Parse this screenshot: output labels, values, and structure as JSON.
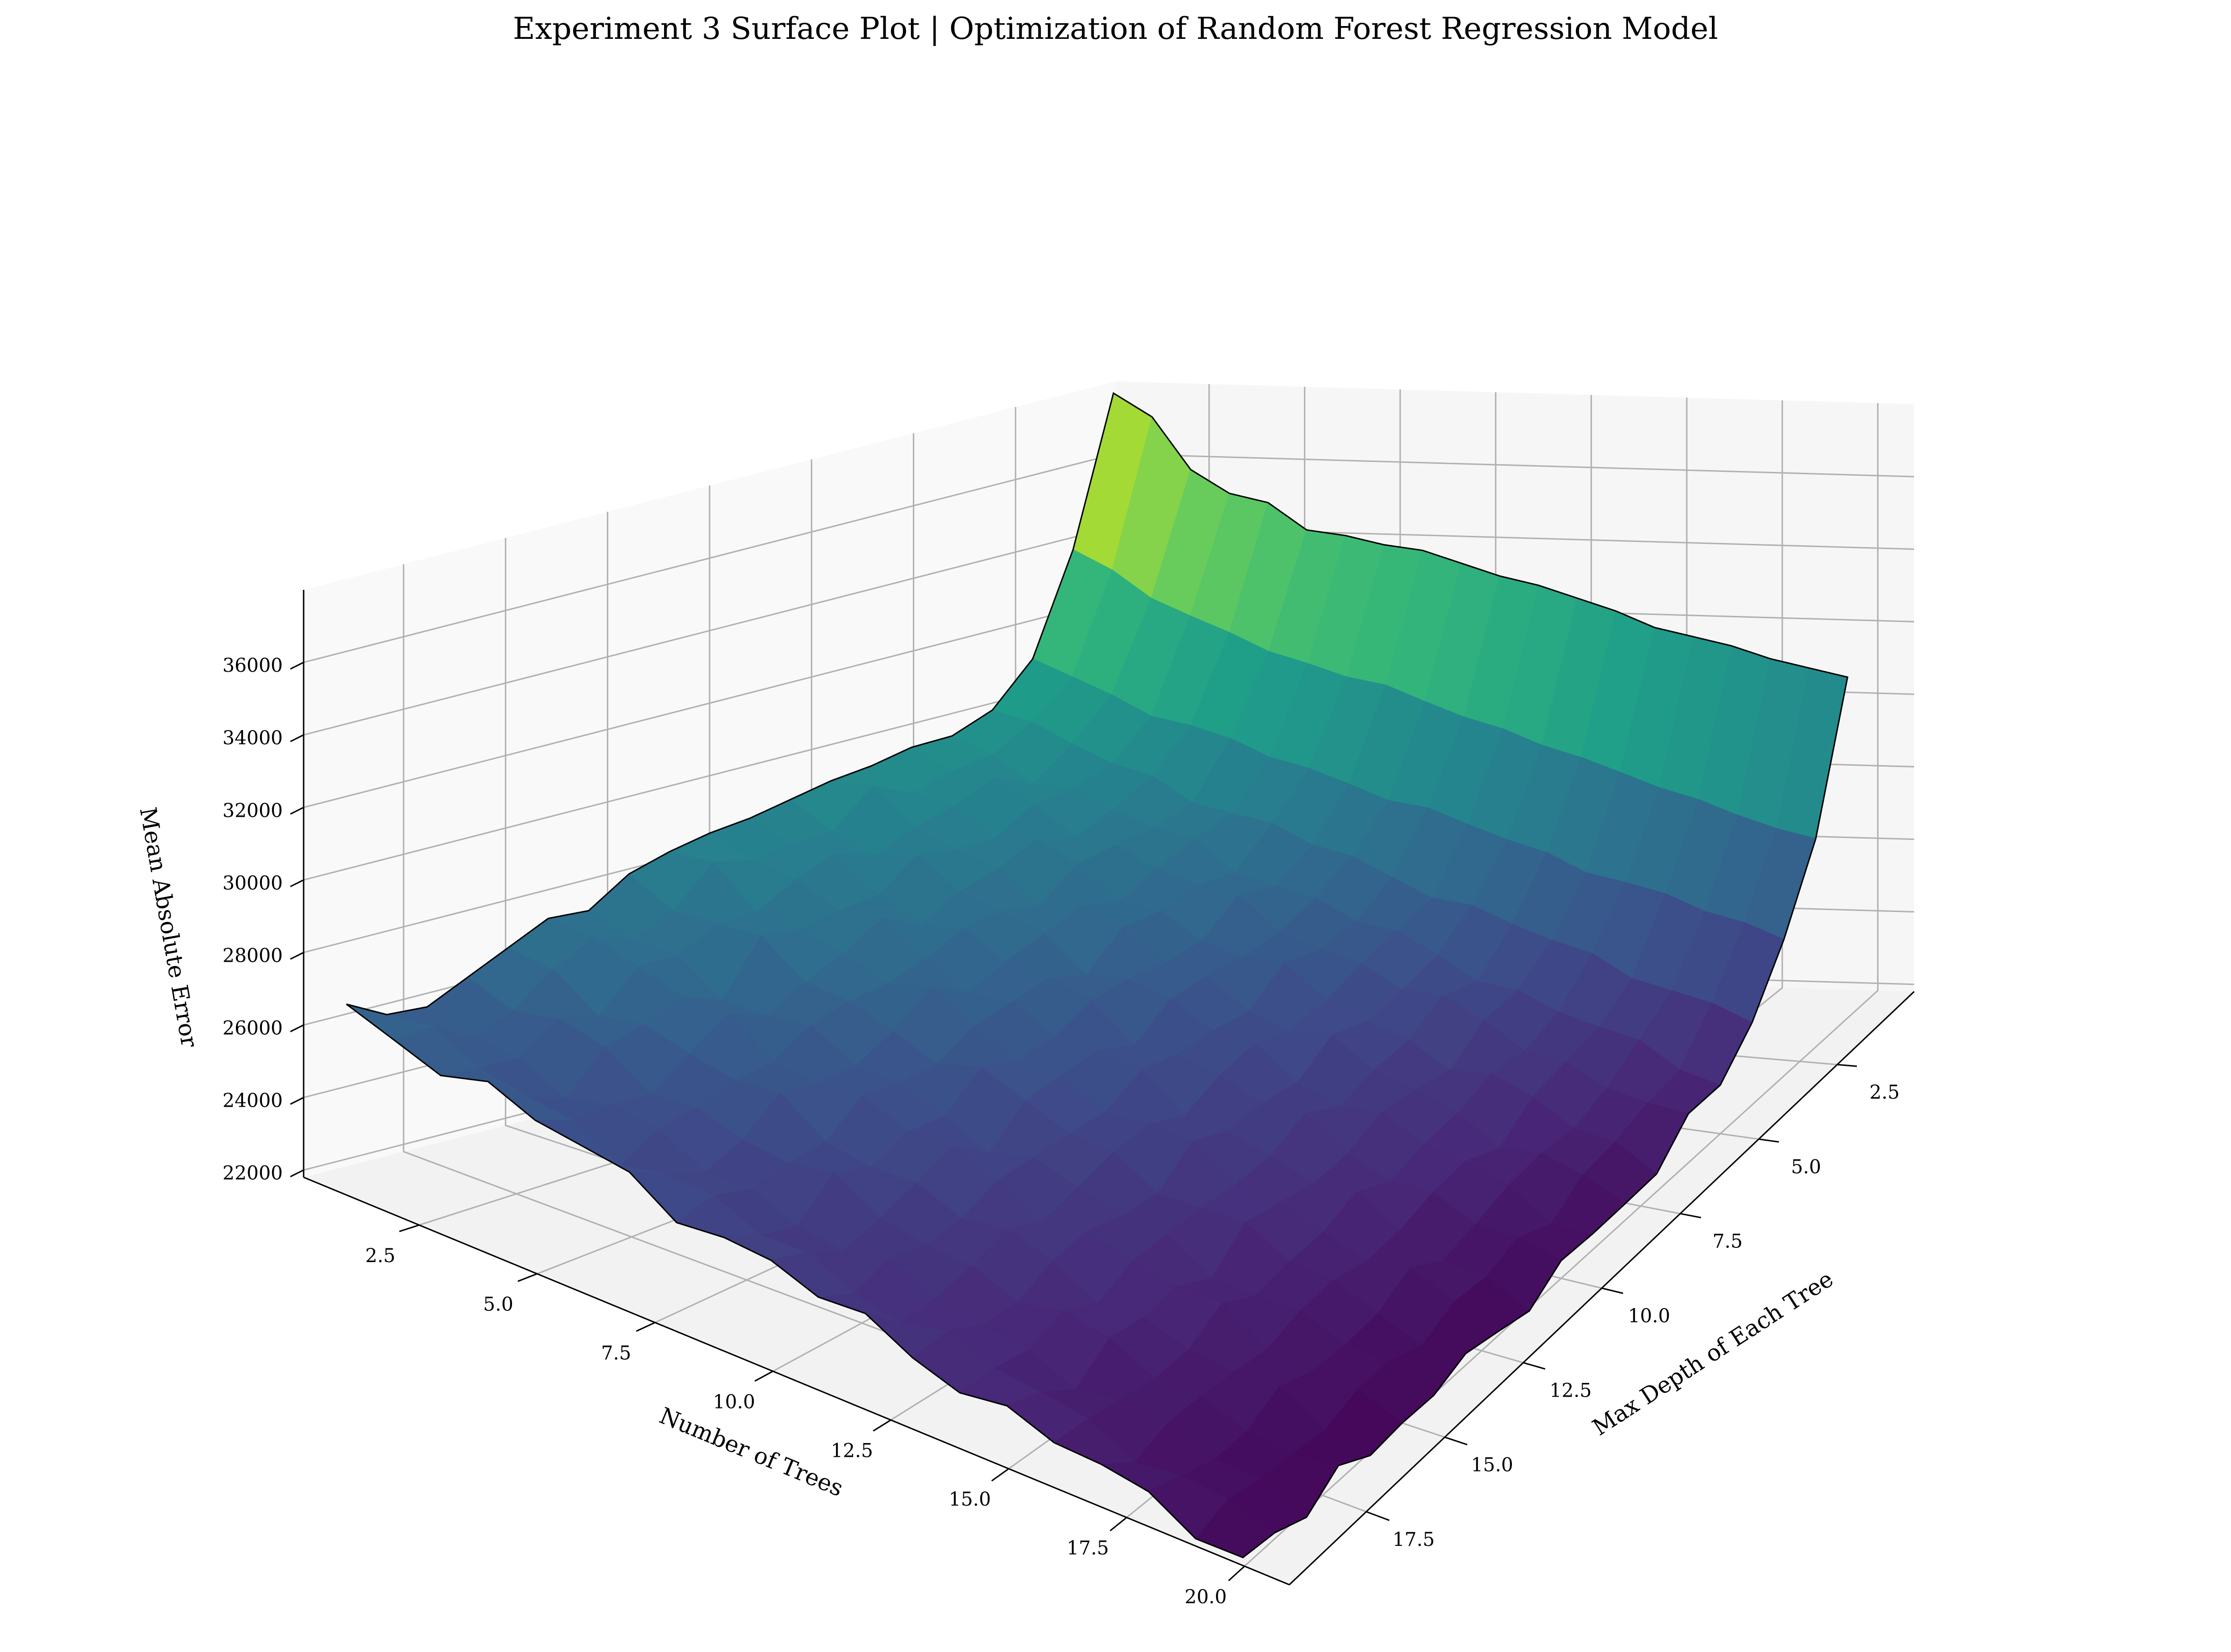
{
  "chart_data": {
    "type": "surface",
    "title": "Experiment 3 Surface Plot | Optimization of Random Forest Regression Model",
    "xlabel": "Number of Trees",
    "ylabel": "Max Depth of Each Tree",
    "zlabel": "Mean Absolute Error",
    "x_values": [
      1,
      2,
      3,
      4,
      5,
      6,
      7,
      8,
      9,
      10,
      11,
      12,
      13,
      14,
      15,
      16,
      17,
      18,
      19,
      20
    ],
    "y_values": [
      1,
      2,
      3,
      4,
      5,
      6,
      7,
      8,
      9,
      10,
      11,
      12,
      13,
      14,
      15,
      16,
      17,
      18,
      19,
      20
    ],
    "x_ticks": [
      "2.5",
      "5.0",
      "7.5",
      "10.0",
      "12.5",
      "15.0",
      "17.5",
      "20.0"
    ],
    "y_ticks": [
      "2.5",
      "5.0",
      "7.5",
      "10.0",
      "12.5",
      "15.0",
      "17.5"
    ],
    "z_ticks": [
      "22000",
      "24000",
      "26000",
      "28000",
      "30000",
      "32000",
      "34000",
      "36000"
    ],
    "z_range": [
      21800,
      38000
    ],
    "colormap": "viridis",
    "grid": true,
    "mae_depth1_by_trees": [
      38000,
      37400,
      36000,
      35400,
      35200,
      34500,
      34400,
      34200,
      34100,
      33800,
      33500,
      33300,
      33000,
      32700,
      32300,
      32100,
      31900,
      31600,
      31400,
      31200
    ],
    "mae_trees1_by_depth": [
      38000,
      34000,
      31300,
      30200,
      29800,
      29800,
      29600,
      29500,
      29300,
      29100,
      29000,
      28800,
      28500,
      27800,
      27900,
      27400,
      26900,
      26400,
      26500,
      27100
    ],
    "mae_trees20_by_depth": [
      31200,
      27500,
      25600,
      24100,
      23200,
      22900,
      22500,
      22300,
      22200,
      22100,
      21900,
      22000,
      21900,
      21800,
      21900,
      21800,
      21900,
      21800,
      22000,
      22100
    ]
  }
}
